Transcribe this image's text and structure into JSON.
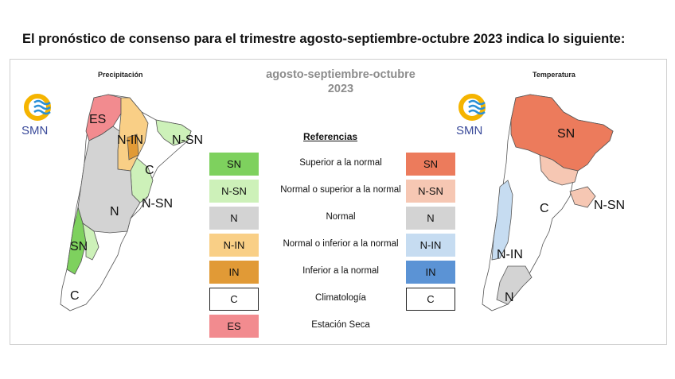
{
  "headline": "El pronóstico de consenso para el trimestre agosto-septiembre-octubre 2023 indica lo siguiente:",
  "period_line1": "agosto-septiembre-octubre",
  "period_line2": "2023",
  "precip_map": {
    "title": "Precipitación",
    "logo_text": "SMN",
    "regions": [
      "ES",
      "N-IN",
      "N-SN",
      "C",
      "N-SN",
      "N",
      "SN",
      "C"
    ]
  },
  "temp_map": {
    "title": "Temperatura",
    "logo_text": "SMN",
    "regions": [
      "SN",
      "C",
      "N-SN",
      "N-IN",
      "N"
    ]
  },
  "legend": {
    "title": "Referencias",
    "rows": [
      {
        "left": "SN",
        "desc": "Superior a la normal",
        "right": "SN",
        "left_color": "#7ed15e",
        "right_color": "#ec7b5c"
      },
      {
        "left": "N-SN",
        "desc": "Normal o superior a la normal",
        "right": "N-SN",
        "left_color": "#cdf1b9",
        "right_color": "#f6c7b3"
      },
      {
        "left": "N",
        "desc": "Normal",
        "right": "N",
        "left_color": "#d3d3d3",
        "right_color": "#d3d3d3"
      },
      {
        "left": "N-IN",
        "desc": "Normal o inferior a la normal",
        "right": "N-IN",
        "left_color": "#f9cf86",
        "right_color": "#c6dcf1"
      },
      {
        "left": "IN",
        "desc": "Inferior a la normal",
        "right": "IN",
        "left_color": "#e19a36",
        "right_color": "#5b93d5"
      },
      {
        "left": "C",
        "desc": "Climatología",
        "right": "C",
        "left_color": "#ffffff",
        "right_color": "#ffffff"
      },
      {
        "left": "ES",
        "desc": "Estación Seca",
        "right": "",
        "left_color": "#f28b8f",
        "right_color": ""
      }
    ]
  }
}
